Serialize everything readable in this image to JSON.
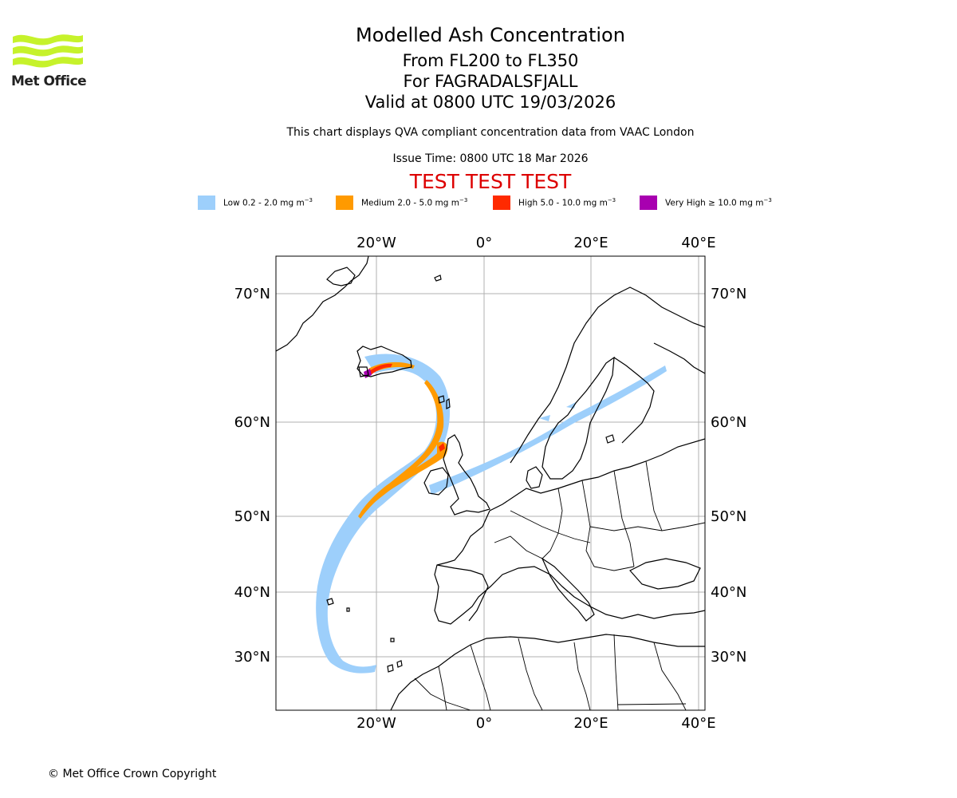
{
  "logo": {
    "text": "Met Office",
    "color": "#c6f22b",
    "text_color": "#222222"
  },
  "header": {
    "title": "Modelled Ash Concentration",
    "levels": "From FL200 to FL350",
    "volcano": "For FAGRADALSFJALL",
    "valid": "Valid at 0800 UTC 19/03/2026",
    "note": "This chart displays QVA compliant concentration data from VAAC London",
    "issue_time": "Issue Time: 0800 UTC 18 Mar 2026",
    "test_banner": "TEST TEST TEST",
    "test_color": "#dd0000"
  },
  "legend": [
    {
      "label": "Low 0.2 - 2.0 mg m",
      "unit_sup": "−3",
      "color": "#9dcffb"
    },
    {
      "label": "Medium 2.0 - 5.0 mg m",
      "unit_sup": "−3",
      "color": "#ff9a00"
    },
    {
      "label": "High 5.0 - 10.0 mg m",
      "unit_sup": "−3",
      "color": "#ff2a00"
    },
    {
      "label": "Very High  ≥  10.0 mg m",
      "unit_sup": "−3",
      "color": "#a800b0"
    }
  ],
  "map": {
    "lon_ticks": [
      "20°W",
      "0°",
      "20°E",
      "40°E"
    ],
    "lat_ticks": [
      "70°N",
      "60°N",
      "50°N",
      "40°N",
      "30°N"
    ],
    "grid_color": "#b0b0b0"
  },
  "footer": {
    "copyright": "© Met Office Crown Copyright"
  }
}
